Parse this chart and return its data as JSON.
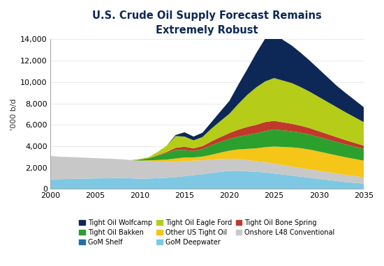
{
  "title": "U.S. Crude Oil Supply Forecast Remains\nExtremely Robust",
  "ylabel": "'000 b/d",
  "ylim": [
    0,
    14000
  ],
  "yticks": [
    0,
    2000,
    4000,
    6000,
    8000,
    10000,
    12000,
    14000
  ],
  "xlim": [
    2000,
    2035
  ],
  "xticks": [
    2000,
    2005,
    2010,
    2015,
    2020,
    2025,
    2030,
    2035
  ],
  "years": [
    2000,
    2001,
    2002,
    2003,
    2004,
    2005,
    2006,
    2007,
    2008,
    2009,
    2010,
    2011,
    2012,
    2013,
    2014,
    2015,
    2016,
    2017,
    2018,
    2019,
    2020,
    2021,
    2022,
    2023,
    2024,
    2025,
    2026,
    2027,
    2028,
    2029,
    2030,
    2031,
    2032,
    2033,
    2034,
    2035
  ],
  "series": {
    "GoM Deepwater": {
      "color": "#7ec8e3",
      "values": [
        900,
        920,
        940,
        960,
        970,
        990,
        1000,
        1020,
        1030,
        1000,
        950,
        980,
        1010,
        1050,
        1100,
        1200,
        1300,
        1380,
        1500,
        1600,
        1680,
        1700,
        1650,
        1600,
        1550,
        1450,
        1350,
        1250,
        1150,
        1050,
        950,
        850,
        750,
        650,
        580,
        500
      ]
    },
    "Onshore L48 Conventional": {
      "color": "#c8c8c8",
      "values": [
        2200,
        2100,
        2050,
        2000,
        1950,
        1900,
        1850,
        1800,
        1750,
        1700,
        1650,
        1600,
        1550,
        1500,
        1450,
        1400,
        1350,
        1300,
        1250,
        1200,
        1150,
        1100,
        1050,
        1000,
        960,
        920,
        880,
        840,
        810,
        780,
        750,
        720,
        690,
        660,
        630,
        600
      ]
    },
    "Other US Tight Oil": {
      "color": "#f5c518",
      "values": [
        0,
        0,
        0,
        0,
        0,
        0,
        0,
        0,
        0,
        0,
        50,
        100,
        150,
        200,
        300,
        350,
        300,
        350,
        450,
        600,
        750,
        900,
        1050,
        1200,
        1400,
        1600,
        1700,
        1800,
        1850,
        1850,
        1800,
        1750,
        1700,
        1650,
        1600,
        1550
      ]
    },
    "Tight Oil Bakken": {
      "color": "#2ca02c",
      "values": [
        0,
        0,
        0,
        0,
        0,
        0,
        0,
        0,
        0,
        0,
        100,
        200,
        400,
        600,
        800,
        700,
        600,
        700,
        900,
        1000,
        1100,
        1200,
        1300,
        1400,
        1500,
        1600,
        1550,
        1500,
        1450,
        1400,
        1350,
        1300,
        1250,
        1200,
        1150,
        1100
      ]
    },
    "Tight Oil Bone Spring": {
      "color": "#c0392b",
      "values": [
        0,
        0,
        0,
        0,
        0,
        0,
        0,
        0,
        0,
        0,
        0,
        0,
        50,
        100,
        200,
        300,
        250,
        280,
        350,
        450,
        550,
        650,
        750,
        800,
        850,
        800,
        750,
        700,
        650,
        600,
        550,
        500,
        450,
        400,
        350,
        300
      ]
    },
    "Tight Oil Eagle Ford": {
      "color": "#b5cc18",
      "values": [
        0,
        0,
        0,
        0,
        0,
        0,
        0,
        0,
        0,
        0,
        50,
        100,
        300,
        600,
        1100,
        950,
        750,
        850,
        1200,
        1500,
        1800,
        2400,
        3000,
        3500,
        3800,
        4000,
        3900,
        3800,
        3600,
        3400,
        3200,
        3000,
        2800,
        2600,
        2400,
        2200
      ]
    },
    "Tight Oil Wolfcamp": {
      "color": "#0d2856",
      "values": [
        0,
        0,
        0,
        0,
        0,
        0,
        0,
        0,
        0,
        0,
        0,
        0,
        0,
        0,
        100,
        400,
        350,
        400,
        600,
        900,
        1200,
        1800,
        2400,
        3200,
        4000,
        4200,
        3800,
        3500,
        3200,
        2900,
        2600,
        2300,
        2000,
        1800,
        1600,
        1400
      ]
    }
  },
  "stack_order": [
    "GoM Deepwater",
    "Onshore L48 Conventional",
    "Other US Tight Oil",
    "Tight Oil Bakken",
    "Tight Oil Bone Spring",
    "Tight Oil Eagle Ford",
    "Tight Oil Wolfcamp"
  ],
  "legend_order": [
    "Tight Oil Wolfcamp",
    "Tight Oil Bakken",
    "GoM Shelf",
    "Tight Oil Eagle Ford",
    "Other US Tight Oil",
    "GoM Deepwater",
    "Tight Oil Bone Spring",
    "Onshore L48 Conventional"
  ],
  "legend_display": [
    [
      "Tight Oil Wolfcamp",
      "#0d2856"
    ],
    [
      "Tight Oil Bakken",
      "#2ca02c"
    ],
    [
      "GoM Shelf",
      "#1f6fa8"
    ],
    [
      "Tight Oil Eagle Ford",
      "#b5cc18"
    ],
    [
      "Other US Tight Oil",
      "#f5c518"
    ],
    [
      "GoM Deepwater",
      "#7ec8e3"
    ],
    [
      "Tight Oil Bone Spring",
      "#c0392b"
    ],
    [
      "Onshore L48 Conventional",
      "#c8c8c8"
    ]
  ],
  "title_color": "#0d2856",
  "background_color": "#ffffff"
}
